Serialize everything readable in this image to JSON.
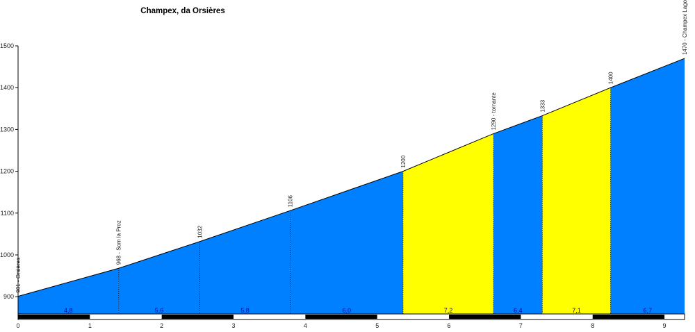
{
  "chart_data": {
    "type": "area",
    "title": "Champex, da Orsières",
    "x_unit": "km",
    "y_unit": "m",
    "xlim": [
      0,
      9.28
    ],
    "ylim": [
      900,
      1500
    ],
    "y_ticks": [
      900,
      1000,
      1100,
      1200,
      1300,
      1400,
      1500
    ],
    "x_ticks": [
      0,
      1,
      2,
      3,
      4,
      5,
      6,
      7,
      8,
      9
    ],
    "grid": false,
    "legend": false,
    "points": [
      {
        "km": 0.0,
        "elev": 901,
        "label": "901 - Orsières"
      },
      {
        "km": 1.4,
        "elev": 968,
        "label": "968 - Som la Proz"
      },
      {
        "km": 2.53,
        "elev": 1032,
        "label": "1032"
      },
      {
        "km": 3.79,
        "elev": 1106,
        "label": "1106"
      },
      {
        "km": 5.36,
        "elev": 1200,
        "label": "1200"
      },
      {
        "km": 6.62,
        "elev": 1290,
        "label": "1290 - tornante"
      },
      {
        "km": 7.3,
        "elev": 1333,
        "label": "1333"
      },
      {
        "km": 8.25,
        "elev": 1400,
        "label": "1400"
      },
      {
        "km": 9.28,
        "elev": 1470,
        "label": "1470 - Champex Lago"
      }
    ],
    "segments": [
      {
        "gradient_label": "4,8",
        "color_key": "blue"
      },
      {
        "gradient_label": "5,6",
        "color_key": "blue"
      },
      {
        "gradient_label": "5,8",
        "color_key": "blue"
      },
      {
        "gradient_label": "6,0",
        "color_key": "blue"
      },
      {
        "gradient_label": "7,2",
        "color_key": "yellow"
      },
      {
        "gradient_label": "6,4",
        "color_key": "blue"
      },
      {
        "gradient_label": "7,1",
        "color_key": "yellow"
      },
      {
        "gradient_label": "6,7",
        "color_key": "blue"
      }
    ],
    "colors": {
      "blue": "#0080FF",
      "yellow": "#FFFF00",
      "outline": "#000000",
      "gradient_text": "#0000A0",
      "axis_text": "#222222",
      "scalebar_dark": "#000000",
      "scalebar_light": "#FFFFFF"
    },
    "scale_bar": {
      "pattern": "alternating-km",
      "start_color": "dark"
    }
  }
}
